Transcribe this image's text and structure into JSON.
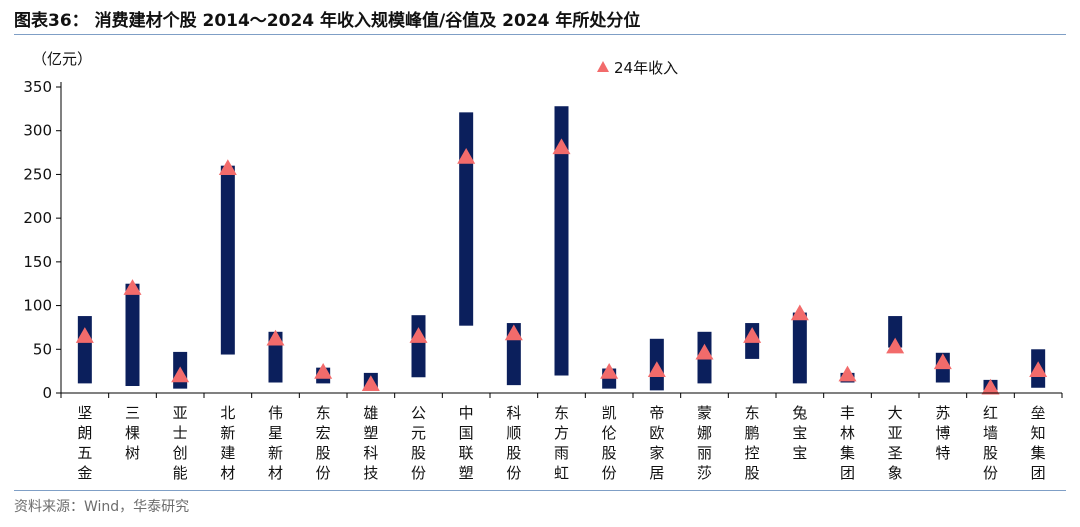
{
  "header": {
    "title": "图表36： 消费建材个股 2014～2024 年收入规模峰值/谷值及 2024 年所处分位"
  },
  "footer": {
    "source": "资料来源：Wind，华泰研究"
  },
  "colors": {
    "bar": "#0b1f5c",
    "marker": "#f26b6b",
    "rule": "#7f9fc6",
    "axis": "#000000"
  },
  "chart_data": {
    "type": "bar",
    "subtype": "floating-range-with-marker",
    "unit_label": "（亿元）",
    "ylim": [
      0,
      350
    ],
    "yticks": [
      0,
      50,
      100,
      150,
      200,
      250,
      300,
      350
    ],
    "grid": false,
    "legend": {
      "position": "top-center",
      "entries": [
        {
          "name": "24年收入",
          "marker": "triangle"
        }
      ]
    },
    "categories": [
      "坚朗五金",
      "三棵树",
      "亚士创能",
      "北新建材",
      "伟星新材",
      "东宏股份",
      "雄塑科技",
      "公元股份",
      "中国联塑",
      "科顺股份",
      "东方雨虹",
      "凯伦股份",
      "帝欧家居",
      "蒙娜丽莎",
      "东鹏控股",
      "兔宝宝",
      "丰林集团",
      "大亚圣象",
      "苏博特",
      "红墙股份",
      "垒知集团"
    ],
    "series": [
      {
        "name": "",
        "role": "range_low",
        "values": [
          11,
          8,
          5,
          44,
          12,
          11,
          3,
          18,
          77,
          9,
          20,
          5,
          3,
          11,
          39,
          11,
          12,
          52,
          12,
          3,
          6
        ]
      },
      {
        "name": "",
        "role": "range_high",
        "values": [
          88,
          125,
          47,
          260,
          70,
          29,
          23,
          89,
          321,
          80,
          328,
          28,
          62,
          70,
          80,
          92,
          23,
          88,
          46,
          15,
          50
        ]
      },
      {
        "name": "24年收入",
        "role": "marker",
        "values": [
          65,
          120,
          20,
          257,
          62,
          24,
          10,
          65,
          270,
          68,
          281,
          24,
          26,
          46,
          65,
          91,
          21,
          53,
          35,
          6,
          26
        ]
      }
    ]
  }
}
